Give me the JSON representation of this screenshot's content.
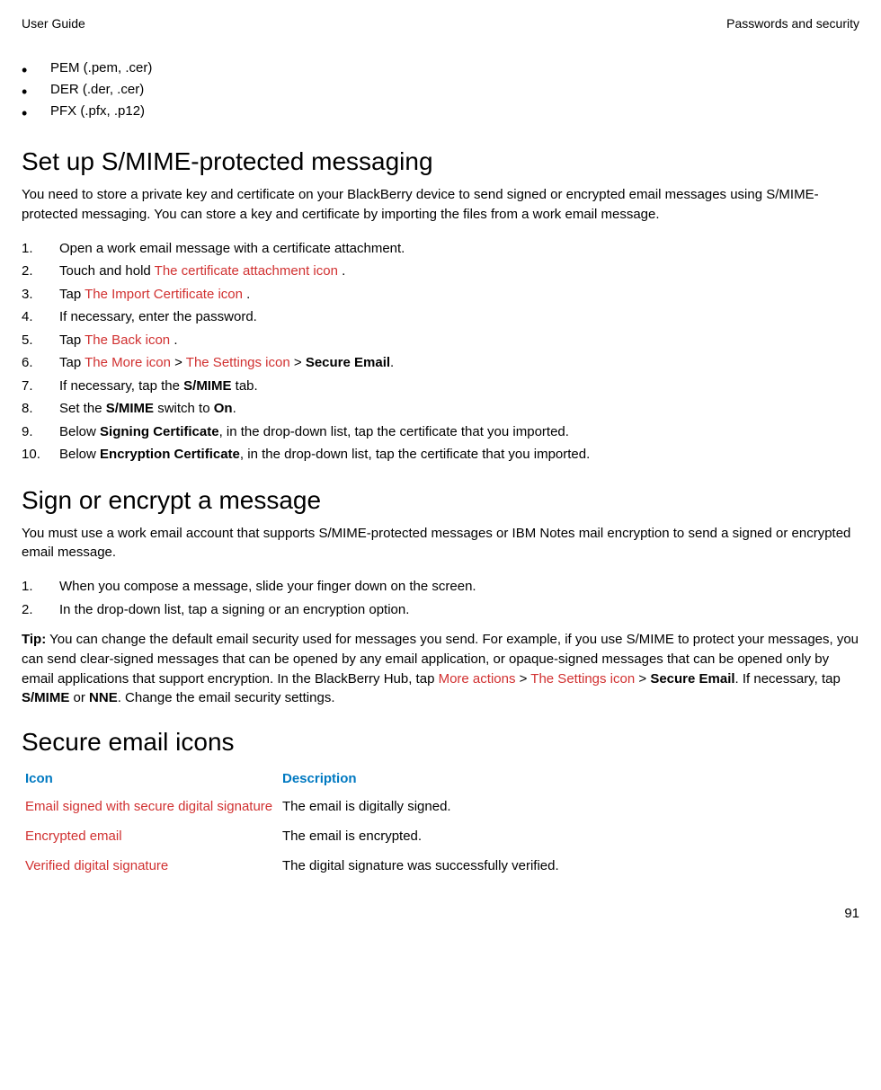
{
  "header": {
    "left": "User Guide",
    "right": "Passwords and security"
  },
  "formats": [
    "PEM (.pem, .cer)",
    "DER (.der, .cer)",
    "PFX (.pfx, .p12)"
  ],
  "section1": {
    "title": "Set up S/MIME-protected messaging",
    "intro": "You need to store a private key and certificate on your BlackBerry device to send signed or encrypted email messages using S/MIME-protected messaging. You can store a key and certificate by importing the files from a work email message.",
    "step1": "Open a work email message with a certificate attachment.",
    "step2_a": "Touch and hold ",
    "step2_b": " The certificate attachment icon ",
    "step2_c": ".",
    "step3_a": "Tap ",
    "step3_b": " The Import Certificate icon ",
    "step3_c": ".",
    "step4": "If necessary, enter the password.",
    "step5_a": "Tap ",
    "step5_b": " The Back icon ",
    "step5_c": ".",
    "step6_a": "Tap ",
    "step6_b": " The More icon ",
    "step6_c": " > ",
    "step6_d": " The Settings icon ",
    "step6_e": " > ",
    "step6_f": "Secure Email",
    "step6_g": ".",
    "step7_a": "If necessary, tap the ",
    "step7_b": "S/MIME",
    "step7_c": " tab.",
    "step8_a": "Set the ",
    "step8_b": "S/MIME",
    "step8_c": " switch to ",
    "step8_d": "On",
    "step8_e": ".",
    "step9_a": "Below ",
    "step9_b": "Signing Certificate",
    "step9_c": ", in the drop-down list, tap the certificate that you imported.",
    "step10_a": "Below ",
    "step10_b": "Encryption Certificate",
    "step10_c": ", in the drop-down list, tap the certificate that you imported."
  },
  "section2": {
    "title": "Sign or encrypt a message",
    "intro": "You must use a work email account that supports S/MIME-protected messages or IBM Notes mail encryption to send a signed or encrypted email message.",
    "step1": "When you compose a message, slide your finger down on the screen.",
    "step2": "In the drop-down list, tap a signing or an encryption option.",
    "tip_label": "Tip:",
    "tip_a": " You can change the default email security used for messages you send. For example, if you use S/MIME to protect your messages, you can send clear-signed messages that can be opened by any email application, or opaque-signed messages that can be opened only by email applications that support encryption. In the BlackBerry Hub, tap ",
    "tip_b": " More actions ",
    "tip_c": " > ",
    "tip_d": " The Settings icon ",
    "tip_e": " > ",
    "tip_f": "Secure Email",
    "tip_g": ". If necessary, tap ",
    "tip_h": "S/MIME",
    "tip_i": " or ",
    "tip_j": "NNE",
    "tip_k": ". Change the email security settings."
  },
  "section3": {
    "title": "Secure email icons",
    "col1": "Icon",
    "col2": "Description",
    "row1_icon": " Email signed with secure digital signature",
    "row1_desc": "The email is digitally signed.",
    "row2_icon": " Encrypted email",
    "row2_desc": "The email is encrypted.",
    "row3_icon": " Verified digital signature",
    "row3_desc": "The digital signature was successfully verified."
  },
  "page_number": "91"
}
